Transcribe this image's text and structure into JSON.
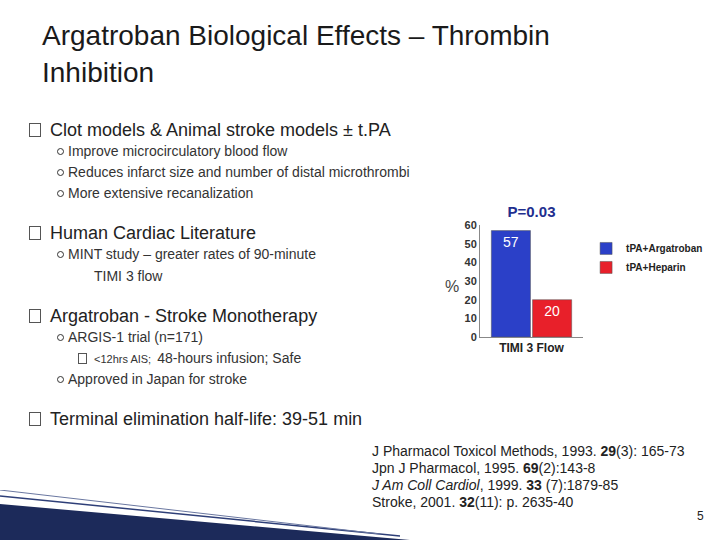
{
  "title_lines": [
    "Argatroban Biological Effects – Thrombin",
    "Inhibition"
  ],
  "bullets": [
    {
      "text": "Clot models & Animal stroke models ± t.PA",
      "items": [
        {
          "lines": [
            "Improve microcirculatory blood flow"
          ]
        },
        {
          "lines": [
            "Reduces infarct size and number of distal microthrombi"
          ]
        },
        {
          "lines": [
            "More extensive recanalization"
          ]
        }
      ]
    },
    {
      "text": "Human Cardiac Literature",
      "items": [
        {
          "lines": [
            "MINT study – greater rates of 90-minute",
            "TIMI 3 flow"
          ]
        }
      ]
    },
    {
      "text": "Argatroban - Stroke Monotherapy",
      "items": [
        {
          "lines": [
            "ARGIS-1 trial (n=171)"
          ],
          "items": [
            {
              "runs": [
                {
                  "text": "<12hrs AIS;",
                  "style": "small"
                },
                {
                  "text": "48-hours infusion; Safe",
                  "style": "plain"
                }
              ]
            }
          ]
        },
        {
          "lines": [
            "Approved in Japan for stroke"
          ]
        }
      ]
    },
    {
      "text": "Terminal elimination half-life:  39-51 min",
      "items": []
    }
  ],
  "references": [
    [
      {
        "text": "J Pharmacol Toxicol Methods, 1993. ",
        "style": "plain"
      },
      {
        "text": "29",
        "style": "bold"
      },
      {
        "text": "(3): 165-73",
        "style": "plain"
      }
    ],
    [
      {
        "text": "Jpn J Pharmacol, 1995. ",
        "style": "plain"
      },
      {
        "text": "69",
        "style": "bold"
      },
      {
        "text": "(2):143-8",
        "style": "plain"
      }
    ],
    [
      {
        "text": "J Am Coll Cardiol",
        "style": "italic"
      },
      {
        "text": ", 1999. ",
        "style": "plain"
      },
      {
        "text": "33",
        "style": "bold"
      },
      {
        "text": " (7):1879-85",
        "style": "plain"
      }
    ],
    [
      {
        "text": "Stroke, 2001. ",
        "style": "plain"
      },
      {
        "text": "32",
        "style": "bold"
      },
      {
        "text": "(11): p. 2635-40",
        "style": "plain"
      }
    ]
  ],
  "page_number": "5",
  "chart_data": {
    "type": "bar",
    "title": "P=0.03",
    "ylabel": "%",
    "categories": [
      "TIMI 3 Flow"
    ],
    "series": [
      {
        "name": "tPA+Argatroban",
        "color": "#2b40c8",
        "values": [
          57
        ]
      },
      {
        "name": "tPA+Heparin",
        "color": "#e8202a",
        "values": [
          20
        ]
      }
    ],
    "ylim": [
      0,
      60
    ],
    "yticks": [
      0,
      10,
      20,
      30,
      40,
      50,
      60
    ],
    "grid": false,
    "legend": "right",
    "data_labels": true
  }
}
